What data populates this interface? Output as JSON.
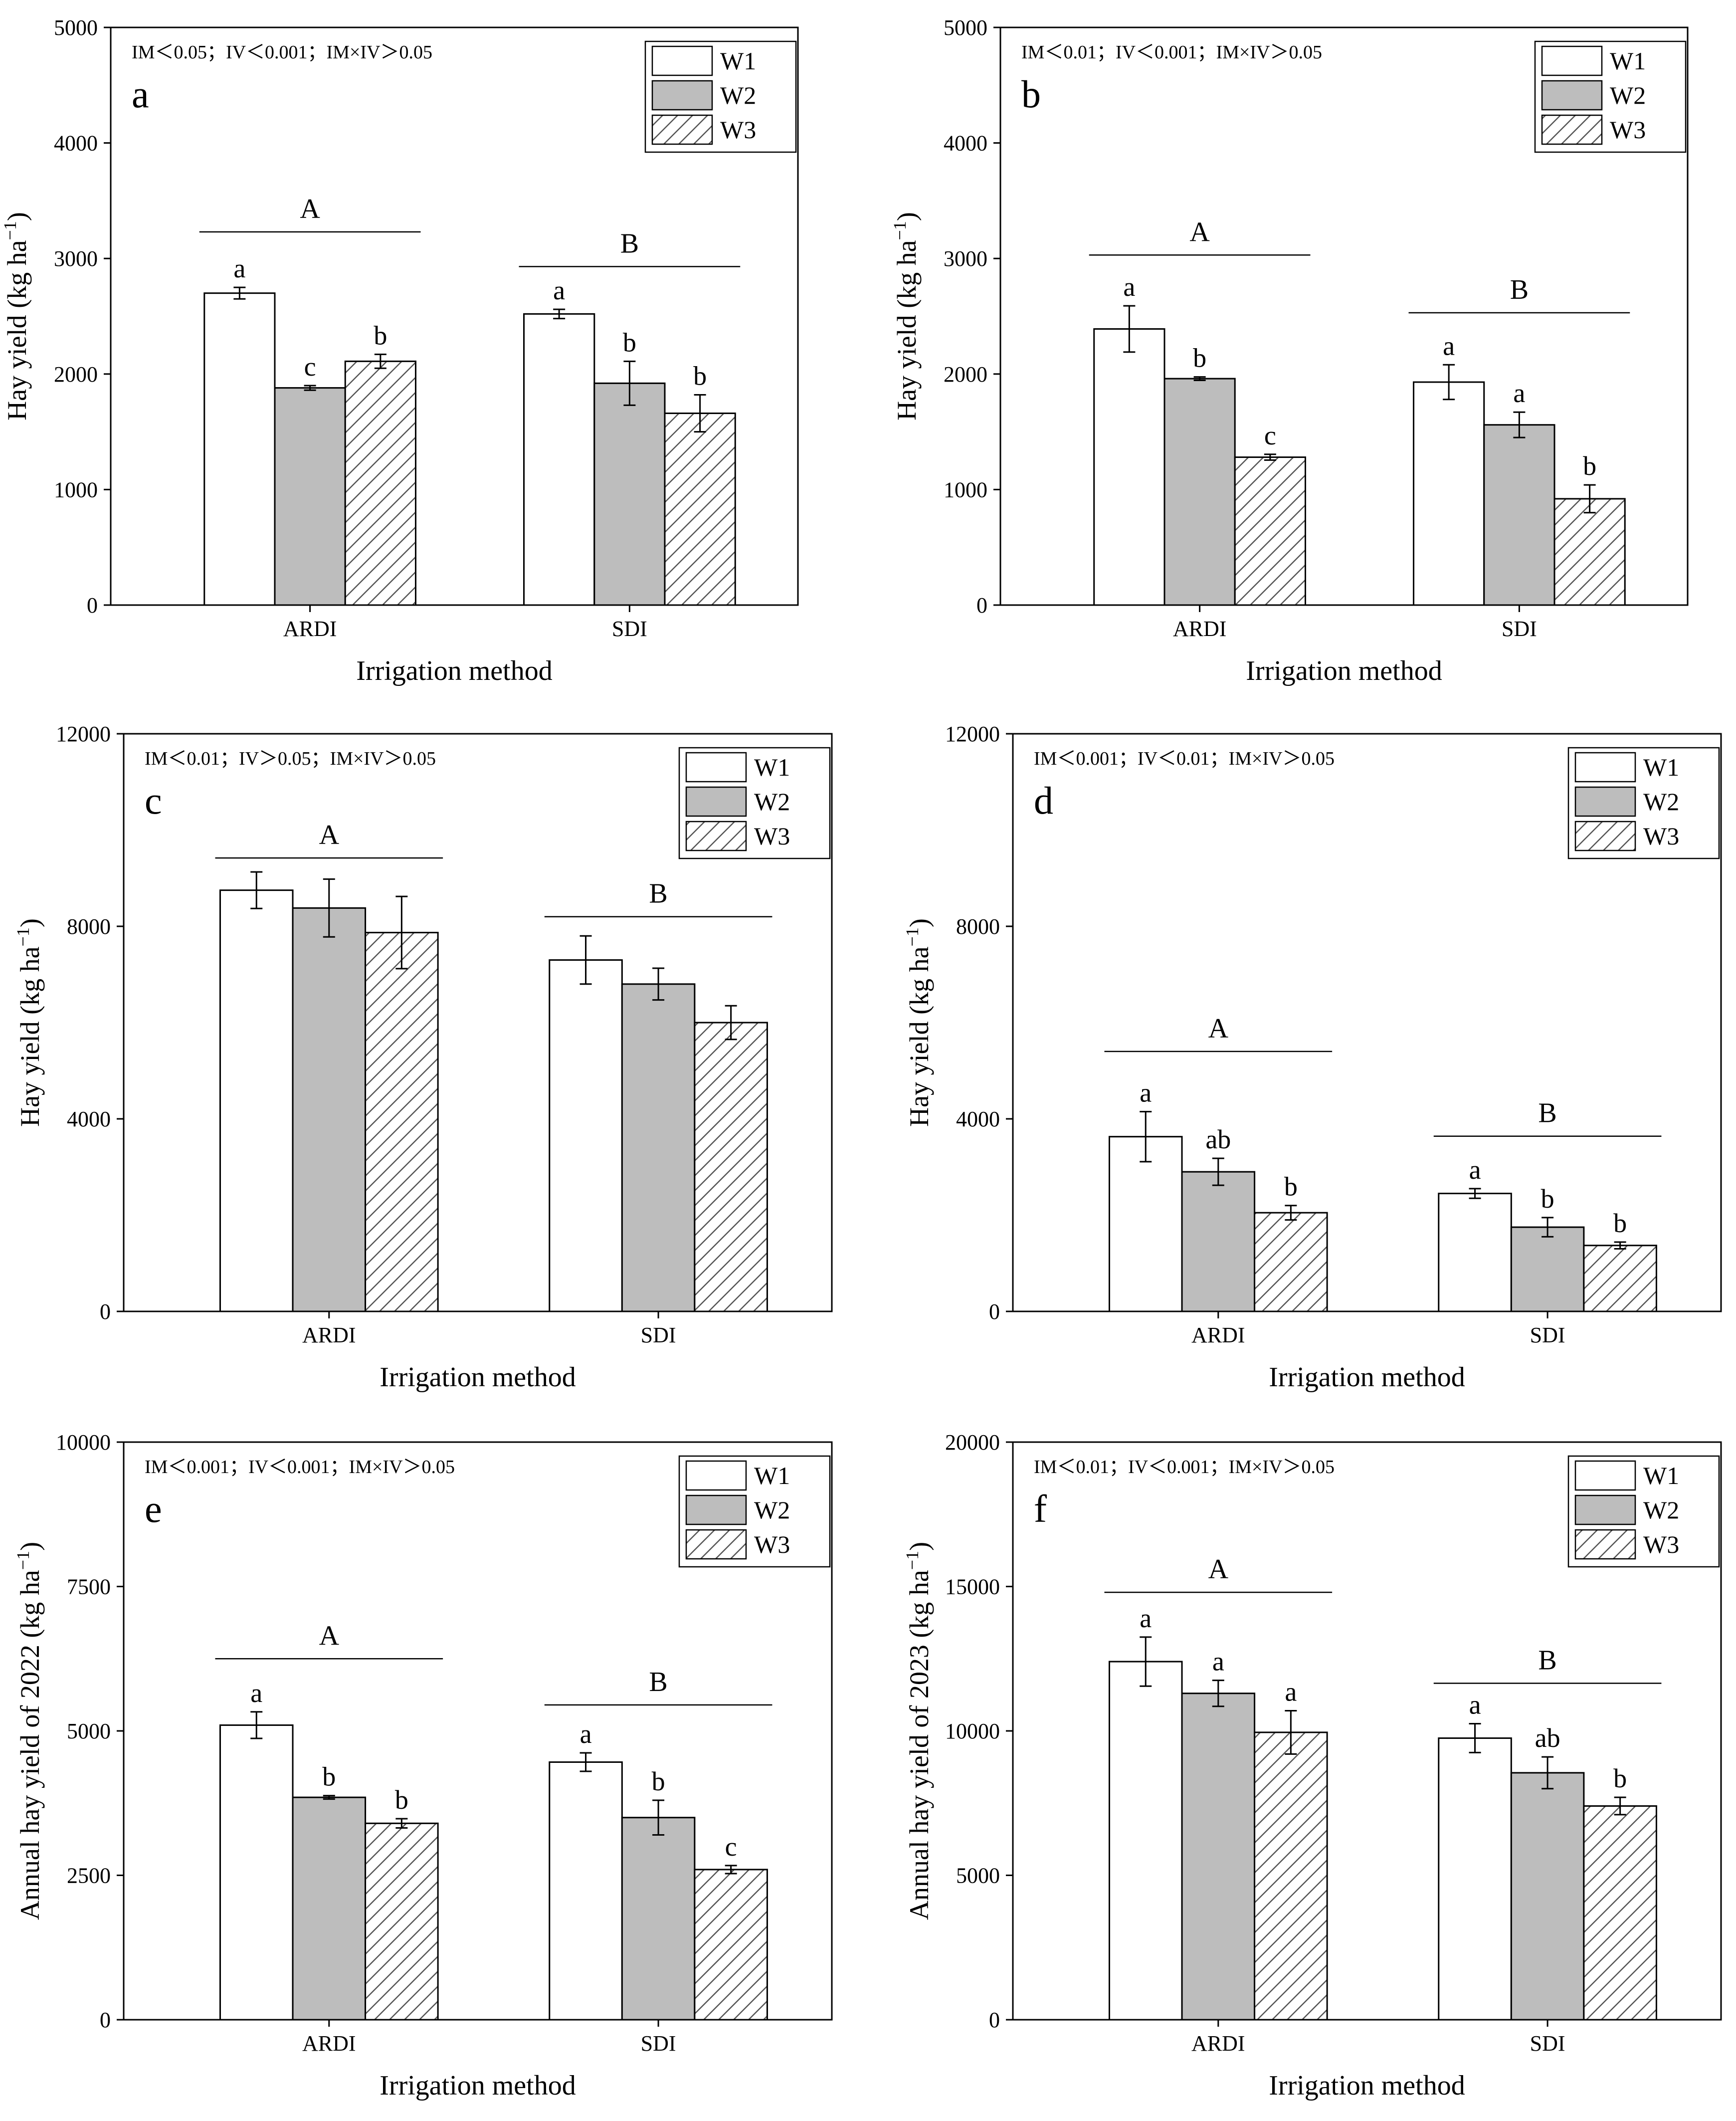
{
  "figure": {
    "legend": [
      "W1",
      "W2",
      "W3"
    ],
    "xlabel": "Irrigation method",
    "styles": {
      "W1": "#ffffff",
      "W2": "#bdbdbd",
      "W3": "hatch"
    }
  },
  "chart_data": [
    {
      "type": "bar",
      "panel": "a",
      "stats": "IM＜0.05；IV＜0.001；IM×IV＞0.05",
      "categories": [
        "ARDI",
        "SDI"
      ],
      "series": [
        {
          "name": "W1",
          "values": [
            2700,
            2520
          ],
          "errors": [
            50,
            40
          ]
        },
        {
          "name": "W2",
          "values": [
            1880,
            1920
          ],
          "errors": [
            20,
            190
          ]
        },
        {
          "name": "W3",
          "values": [
            2110,
            1660
          ],
          "errors": [
            60,
            160
          ]
        }
      ],
      "letters": [
        [
          "a",
          "c",
          "b"
        ],
        [
          "a",
          "b",
          "b"
        ]
      ],
      "group_letters": [
        "A",
        "B"
      ],
      "group_line_values": [
        3230,
        2930
      ],
      "ylabel": "Hay yield (kg ha",
      "ylim": [
        0,
        5000
      ],
      "yticks": [
        0,
        1000,
        2000,
        3000,
        4000,
        5000
      ],
      "xlabel": "Irrigation method"
    },
    {
      "type": "bar",
      "panel": "b",
      "stats": "IM＜0.01；IV＜0.001；IM×IV＞0.05",
      "categories": [
        "ARDI",
        "SDI"
      ],
      "series": [
        {
          "name": "W1",
          "values": [
            2390,
            1930
          ],
          "errors": [
            200,
            150
          ]
        },
        {
          "name": "W2",
          "values": [
            1960,
            1560
          ],
          "errors": [
            15,
            110
          ]
        },
        {
          "name": "W3",
          "values": [
            1280,
            920
          ],
          "errors": [
            25,
            120
          ]
        }
      ],
      "letters": [
        [
          "a",
          "b",
          "c"
        ],
        [
          "a",
          "a",
          "b"
        ]
      ],
      "group_letters": [
        "A",
        "B"
      ],
      "group_line_values": [
        3030,
        2530
      ],
      "ylabel": "Hay yield (kg ha",
      "ylim": [
        0,
        5000
      ],
      "yticks": [
        0,
        1000,
        2000,
        3000,
        4000,
        5000
      ],
      "xlabel": "Irrigation method"
    },
    {
      "type": "bar",
      "panel": "c",
      "stats": "IM＜0.01；IV＞0.05；IM×IV＞0.05",
      "categories": [
        "ARDI",
        "SDI"
      ],
      "series": [
        {
          "name": "W1",
          "values": [
            8750,
            7300
          ],
          "errors": [
            380,
            500
          ]
        },
        {
          "name": "W2",
          "values": [
            8380,
            6800
          ],
          "errors": [
            600,
            330
          ]
        },
        {
          "name": "W3",
          "values": [
            7870,
            6000
          ],
          "errors": [
            750,
            350
          ]
        }
      ],
      "letters": [
        [
          "",
          "",
          ""
        ],
        [
          "",
          "",
          ""
        ]
      ],
      "group_letters": [
        "A",
        "B"
      ],
      "group_line_values": [
        9420,
        8200
      ],
      "ylabel": "Hay yield (kg ha",
      "ylim": [
        0,
        12000
      ],
      "yticks": [
        0,
        4000,
        8000,
        12000
      ],
      "xlabel": "Irrigation method"
    },
    {
      "type": "bar",
      "panel": "d",
      "stats": "IM＜0.001；IV＜0.01；IM×IV＞0.05",
      "categories": [
        "ARDI",
        "SDI"
      ],
      "series": [
        {
          "name": "W1",
          "values": [
            3630,
            2450
          ],
          "errors": [
            520,
            100
          ]
        },
        {
          "name": "W2",
          "values": [
            2900,
            1750
          ],
          "errors": [
            280,
            200
          ]
        },
        {
          "name": "W3",
          "values": [
            2050,
            1370
          ],
          "errors": [
            150,
            70
          ]
        }
      ],
      "letters": [
        [
          "a",
          "ab",
          "b"
        ],
        [
          "a",
          "b",
          "b"
        ]
      ],
      "group_letters": [
        "A",
        "B"
      ],
      "group_line_values": [
        5400,
        3640
      ],
      "ylabel": "Hay yield (kg ha",
      "ylim": [
        0,
        12000
      ],
      "yticks": [
        0,
        4000,
        8000,
        12000
      ],
      "xlabel": "Irrigation method"
    },
    {
      "type": "bar",
      "panel": "e",
      "stats": "IM＜0.001；IV＜0.001；IM×IV＞0.05",
      "categories": [
        "ARDI",
        "SDI"
      ],
      "series": [
        {
          "name": "W1",
          "values": [
            5100,
            4460
          ],
          "errors": [
            230,
            160
          ]
        },
        {
          "name": "W2",
          "values": [
            3850,
            3500
          ],
          "errors": [
            30,
            300
          ]
        },
        {
          "name": "W3",
          "values": [
            3400,
            2600
          ],
          "errors": [
            80,
            70
          ]
        }
      ],
      "letters": [
        [
          "a",
          "b",
          "b"
        ],
        [
          "a",
          "b",
          "c"
        ]
      ],
      "group_letters": [
        "A",
        "B"
      ],
      "group_line_values": [
        6250,
        5450
      ],
      "ylabel": "Annual hay yield of 2022 (kg ha",
      "ylim": [
        0,
        10000
      ],
      "yticks": [
        0,
        2500,
        5000,
        7500,
        10000
      ],
      "xlabel": "Irrigation method"
    },
    {
      "type": "bar",
      "panel": "f",
      "stats": "IM＜0.01；IV＜0.001；IM×IV＞0.05",
      "categories": [
        "ARDI",
        "SDI"
      ],
      "series": [
        {
          "name": "W1",
          "values": [
            12400,
            9750
          ],
          "errors": [
            850,
            500
          ]
        },
        {
          "name": "W2",
          "values": [
            11300,
            8550
          ],
          "errors": [
            450,
            550
          ]
        },
        {
          "name": "W3",
          "values": [
            9950,
            7400
          ],
          "errors": [
            750,
            300
          ]
        }
      ],
      "letters": [
        [
          "a",
          "a",
          "a"
        ],
        [
          "a",
          "ab",
          "b"
        ]
      ],
      "group_letters": [
        "A",
        "B"
      ],
      "group_line_values": [
        14800,
        11650
      ],
      "ylabel": "Annual hay yield of 2023 (kg ha",
      "ylim": [
        0,
        20000
      ],
      "yticks": [
        0,
        5000,
        10000,
        15000,
        20000
      ],
      "xlabel": "Irrigation method"
    }
  ]
}
